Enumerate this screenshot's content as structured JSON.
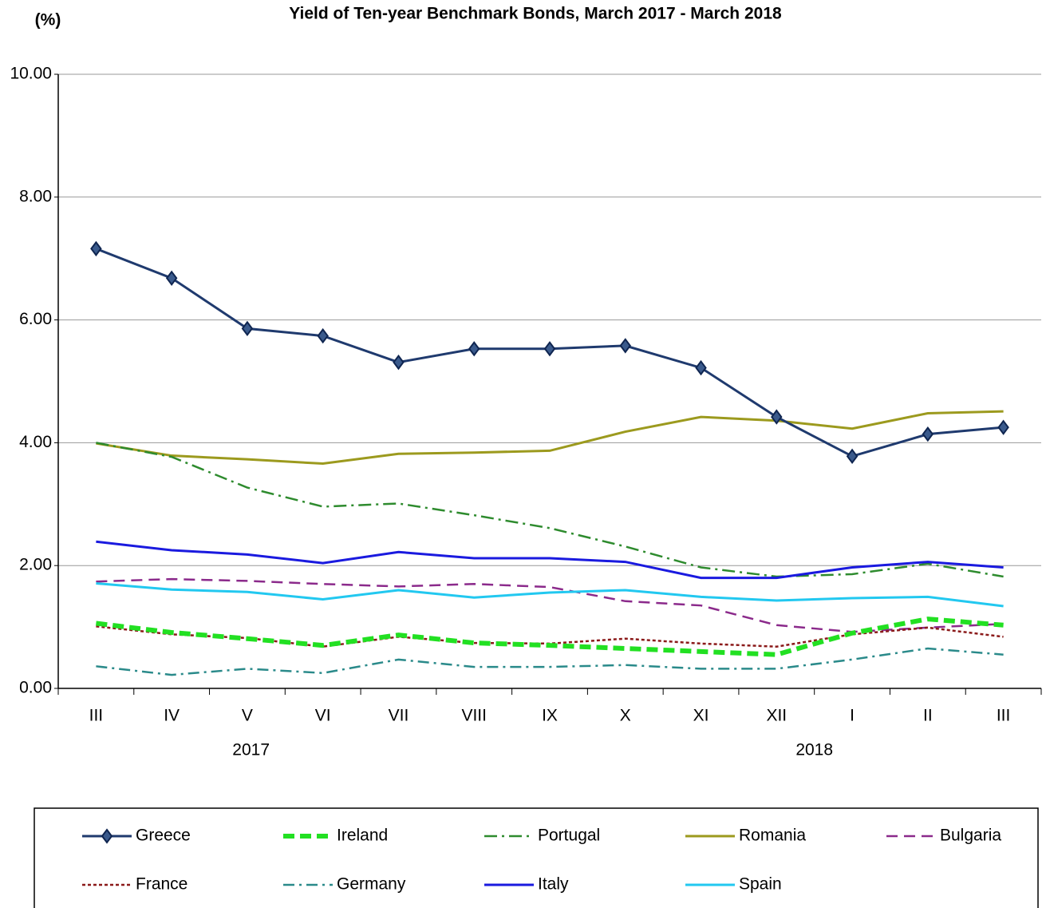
{
  "chart_data": {
    "type": "line",
    "title": "Yield of Ten-year Benchmark Bonds, March 2017 - March 2018",
    "y_label": "(%)",
    "categories": [
      "III",
      "IV",
      "V",
      "VI",
      "VII",
      "VIII",
      "IX",
      "X",
      "XI",
      "XII",
      "I",
      "II",
      "III"
    ],
    "year_labels": [
      "2017",
      "2018"
    ],
    "ylim": [
      0,
      10
    ],
    "yticks": [
      {
        "value": 0,
        "label": "0.00"
      },
      {
        "value": 2,
        "label": "2.00"
      },
      {
        "value": 4,
        "label": "4.00"
      },
      {
        "value": 6,
        "label": "6.00"
      },
      {
        "value": 8,
        "label": "8.00"
      },
      {
        "value": 10,
        "label": "10.00"
      }
    ],
    "grid": true,
    "legend": "bottom",
    "series": [
      {
        "name": "Greece",
        "color": "#1f3a6e",
        "width": 3,
        "dash": "none",
        "marker": "diamond",
        "values": [
          7.16,
          6.68,
          5.86,
          5.74,
          5.31,
          5.53,
          5.53,
          5.58,
          5.22,
          4.42,
          3.78,
          4.14,
          4.25
        ]
      },
      {
        "name": "Ireland",
        "color": "#22e022",
        "width": 6,
        "dash": "14 7",
        "values": [
          1.06,
          0.91,
          0.81,
          0.7,
          0.87,
          0.74,
          0.7,
          0.65,
          0.6,
          0.55,
          0.9,
          1.13,
          1.03
        ]
      },
      {
        "name": "Portugal",
        "color": "#2e8b2e",
        "width": 2.5,
        "dash": "16 6 3 6",
        "values": [
          4.0,
          3.77,
          3.27,
          2.96,
          3.01,
          2.82,
          2.61,
          2.31,
          1.97,
          1.82,
          1.86,
          2.03,
          1.82
        ]
      },
      {
        "name": "Romania",
        "color": "#9c9a1e",
        "width": 3,
        "dash": "none",
        "values": [
          3.99,
          3.79,
          3.73,
          3.66,
          3.82,
          3.84,
          3.87,
          4.18,
          4.42,
          4.36,
          4.23,
          4.48,
          4.51
        ]
      },
      {
        "name": "Bulgaria",
        "color": "#8b2a8b",
        "width": 2.5,
        "dash": "14 8",
        "values": [
          1.74,
          1.78,
          1.75,
          1.7,
          1.66,
          1.7,
          1.65,
          1.42,
          1.35,
          1.03,
          0.92,
          0.99,
          1.05
        ]
      },
      {
        "name": "France",
        "color": "#8b1a1a",
        "width": 2.5,
        "dash": "4 3",
        "values": [
          1.01,
          0.88,
          0.82,
          0.68,
          0.84,
          0.74,
          0.73,
          0.81,
          0.73,
          0.68,
          0.88,
          0.99,
          0.84
        ]
      },
      {
        "name": "Germany",
        "color": "#2a8a8a",
        "width": 2.5,
        "dash": "14 6 3 6",
        "values": [
          0.36,
          0.22,
          0.32,
          0.25,
          0.47,
          0.35,
          0.35,
          0.38,
          0.32,
          0.32,
          0.47,
          0.65,
          0.55
        ]
      },
      {
        "name": "Italy",
        "color": "#1a1adf",
        "width": 3,
        "dash": "none",
        "values": [
          2.39,
          2.25,
          2.18,
          2.04,
          2.22,
          2.12,
          2.12,
          2.06,
          1.8,
          1.8,
          1.97,
          2.06,
          1.97
        ]
      },
      {
        "name": "Spain",
        "color": "#22c8f0",
        "width": 3,
        "dash": "none",
        "values": [
          1.71,
          1.61,
          1.57,
          1.45,
          1.6,
          1.48,
          1.56,
          1.6,
          1.49,
          1.43,
          1.47,
          1.49,
          1.34
        ]
      }
    ]
  }
}
